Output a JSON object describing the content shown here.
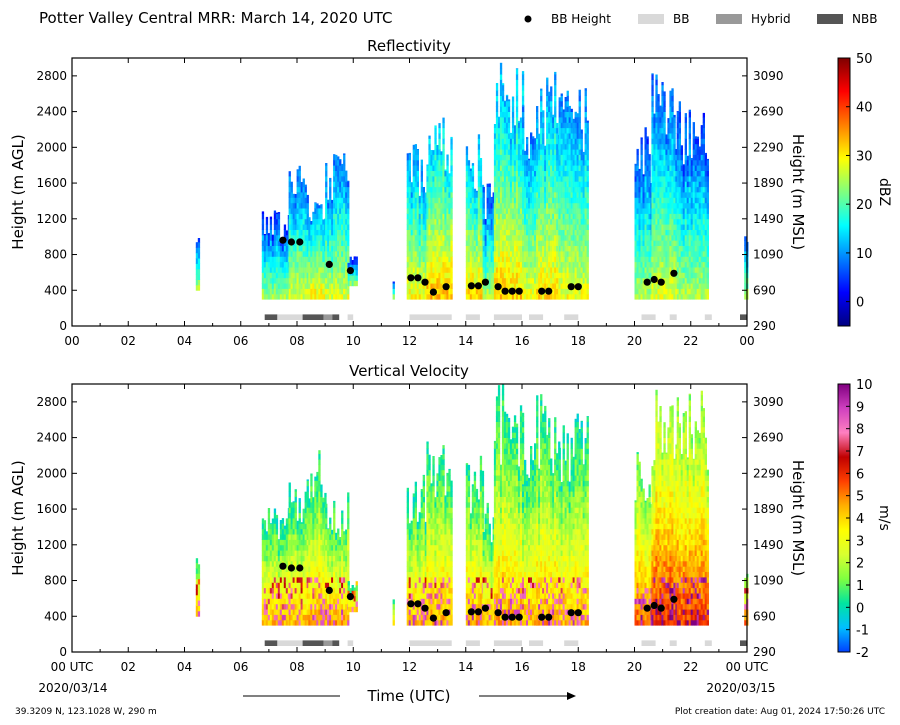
{
  "figure": {
    "title": "Potter Valley Central MRR:  March 14, 2020 UTC",
    "legend": [
      {
        "label": "BB Height",
        "kind": "dot",
        "color": "#000000"
      },
      {
        "label": "BB",
        "kind": "box",
        "color": "#d9d9d9"
      },
      {
        "label": "Hybrid",
        "kind": "box",
        "color": "#999999"
      },
      {
        "label": "NBB",
        "kind": "box",
        "color": "#555555"
      }
    ],
    "xlabel": "Time (UTC)",
    "start_date": "2020/03/14",
    "end_date": "2020/03/15",
    "footer_left": "39.3209 N, 123.1028 W, 290 m",
    "footer_right": "Plot creation date: Aug 01, 2024 17:50:26 UTC"
  },
  "chart_data": [
    {
      "type": "heatmap",
      "title": "Reflectivity",
      "ylabel": "Height (m AGL)",
      "y2label": "Height (m MSL)",
      "colorbar_label": "dBZ",
      "colorbar_ticks": [
        0,
        10,
        20,
        30,
        40,
        50
      ],
      "colorbar_range": [
        -5,
        50
      ],
      "colormap": [
        "#00007f",
        "#0000ff",
        "#007fff",
        "#00ffff",
        "#7fff7f",
        "#ffff00",
        "#ff7f00",
        "#ff0000",
        "#7f0000"
      ],
      "xlim": [
        0,
        24
      ],
      "ylim": [
        0,
        3000
      ],
      "x_tick_labels": [
        "00",
        "02",
        "04",
        "06",
        "08",
        "10",
        "12",
        "14",
        "16",
        "18",
        "20",
        "22",
        "00"
      ],
      "y_ticks": [
        0,
        400,
        800,
        1200,
        1600,
        2000,
        2400,
        2800
      ],
      "y2_ticks": [
        290,
        690,
        1090,
        1490,
        1890,
        2290,
        2690,
        3090
      ],
      "echo_columns": [
        {
          "x": [
            4.4,
            4.5
          ],
          "top": 1050,
          "base": 400,
          "level": 0.3
        },
        {
          "x": [
            6.75,
            7.7
          ],
          "top": 1300,
          "base": 300,
          "level": 0.28
        },
        {
          "x": [
            7.7,
            8.4
          ],
          "top": 1800,
          "base": 300,
          "level": 0.34
        },
        {
          "x": [
            8.4,
            9.0
          ],
          "top": 1400,
          "base": 300,
          "level": 0.38
        },
        {
          "x": [
            9.0,
            9.8
          ],
          "top": 1950,
          "base": 300,
          "level": 0.34
        },
        {
          "x": [
            9.8,
            10.1
          ],
          "top": 800,
          "base": 450,
          "level": 0.25
        },
        {
          "x": [
            11.4,
            11.45
          ],
          "top": 600,
          "base": 300,
          "level": 0.3
        },
        {
          "x": [
            11.9,
            12.6
          ],
          "top": 2050,
          "base": 300,
          "level": 0.38
        },
        {
          "x": [
            12.6,
            13.5
          ],
          "top": 2400,
          "base": 300,
          "level": 0.44
        },
        {
          "x": [
            14.0,
            14.6
          ],
          "top": 2150,
          "base": 300,
          "level": 0.42
        },
        {
          "x": [
            14.6,
            15.0
          ],
          "top": 1600,
          "base": 300,
          "level": 0.3
        },
        {
          "x": [
            15.0,
            16.0
          ],
          "top": 3000,
          "base": 300,
          "level": 0.42
        },
        {
          "x": [
            16.0,
            16.5
          ],
          "top": 2500,
          "base": 300,
          "level": 0.36
        },
        {
          "x": [
            16.5,
            17.3
          ],
          "top": 2900,
          "base": 300,
          "level": 0.4
        },
        {
          "x": [
            17.3,
            18.3
          ],
          "top": 2700,
          "base": 300,
          "level": 0.36
        },
        {
          "x": [
            20.0,
            20.6
          ],
          "top": 2300,
          "base": 300,
          "level": 0.3
        },
        {
          "x": [
            20.6,
            21.5
          ],
          "top": 2850,
          "base": 300,
          "level": 0.34
        },
        {
          "x": [
            21.5,
            22.6
          ],
          "top": 2600,
          "base": 300,
          "level": 0.3
        },
        {
          "x": [
            23.9,
            24.0
          ],
          "top": 1100,
          "base": 300,
          "level": 0.3
        }
      ]
    },
    {
      "type": "heatmap",
      "title": "Vertical Velocity",
      "ylabel": "Height (m AGL)",
      "y2label": "Height (m MSL)",
      "colorbar_label": "m/s",
      "colorbar_ticks": [
        -2,
        -1,
        0,
        1,
        2,
        3,
        4,
        5,
        6,
        7,
        8,
        9,
        10
      ],
      "colorbar_range": [
        -2,
        10
      ],
      "colormap": [
        "#0040ff",
        "#00bfff",
        "#00e5a0",
        "#7fff40",
        "#d8ff30",
        "#ffff00",
        "#ffb000",
        "#ff4000",
        "#c00000",
        "#ff80c0",
        "#d040c0",
        "#800080"
      ],
      "xlim": [
        0,
        24
      ],
      "ylim": [
        0,
        3000
      ],
      "x_tick_labels": [
        "00 UTC",
        "02",
        "04",
        "06",
        "08",
        "10",
        "12",
        "14",
        "16",
        "18",
        "20",
        "22",
        "00 UTC"
      ],
      "y_ticks": [
        0,
        400,
        800,
        1200,
        1600,
        2000,
        2400,
        2800
      ],
      "y2_ticks": [
        290,
        690,
        1090,
        1490,
        1890,
        2290,
        2690,
        3090
      ],
      "echo_columns": [
        {
          "x": [
            4.4,
            4.5
          ],
          "top": 1100,
          "base": 400,
          "level": 0.28
        },
        {
          "x": [
            6.75,
            7.7
          ],
          "top": 1700,
          "base": 300,
          "level": 0.28
        },
        {
          "x": [
            7.7,
            8.4
          ],
          "top": 2000,
          "base": 300,
          "level": 0.28
        },
        {
          "x": [
            8.4,
            9.0
          ],
          "top": 2300,
          "base": 300,
          "level": 0.3
        },
        {
          "x": [
            9.0,
            9.8
          ],
          "top": 1800,
          "base": 300,
          "level": 0.3
        },
        {
          "x": [
            9.8,
            10.1
          ],
          "top": 800,
          "base": 450,
          "level": 0.26
        },
        {
          "x": [
            11.4,
            11.45
          ],
          "top": 600,
          "base": 300,
          "level": 0.28
        },
        {
          "x": [
            11.9,
            12.6
          ],
          "top": 2050,
          "base": 300,
          "level": 0.28
        },
        {
          "x": [
            12.6,
            13.5
          ],
          "top": 2400,
          "base": 300,
          "level": 0.3
        },
        {
          "x": [
            14.0,
            14.6
          ],
          "top": 2200,
          "base": 300,
          "level": 0.3
        },
        {
          "x": [
            14.6,
            15.0
          ],
          "top": 1700,
          "base": 300,
          "level": 0.28
        },
        {
          "x": [
            15.0,
            16.0
          ],
          "top": 3000,
          "base": 300,
          "level": 0.3
        },
        {
          "x": [
            16.0,
            16.5
          ],
          "top": 2500,
          "base": 300,
          "level": 0.28
        },
        {
          "x": [
            16.5,
            17.3
          ],
          "top": 2900,
          "base": 300,
          "level": 0.3
        },
        {
          "x": [
            17.3,
            18.3
          ],
          "top": 2700,
          "base": 300,
          "level": 0.28
        },
        {
          "x": [
            20.0,
            20.6
          ],
          "top": 2300,
          "base": 300,
          "level": 0.36
        },
        {
          "x": [
            20.6,
            21.5
          ],
          "top": 3000,
          "base": 300,
          "level": 0.42
        },
        {
          "x": [
            21.5,
            22.6
          ],
          "top": 2950,
          "base": 300,
          "level": 0.4
        },
        {
          "x": [
            23.9,
            24.0
          ],
          "top": 1100,
          "base": 300,
          "level": 0.36
        }
      ]
    }
  ],
  "bb_height": {
    "times": [
      7.5,
      7.8,
      8.1,
      9.15,
      9.9,
      12.05,
      12.3,
      12.55,
      12.85,
      13.3,
      14.2,
      14.45,
      14.7,
      15.15,
      15.4,
      15.65,
      15.9,
      16.7,
      16.95,
      17.75,
      18.0,
      20.45,
      20.7,
      20.95,
      21.4
    ],
    "heights": [
      960,
      940,
      940,
      690,
      620,
      540,
      540,
      490,
      380,
      440,
      450,
      450,
      490,
      440,
      390,
      390,
      390,
      390,
      390,
      440,
      440,
      490,
      520,
      490,
      590
    ]
  },
  "bb_type_bar": [
    {
      "start": 6.85,
      "end": 7.3,
      "type": "NBB"
    },
    {
      "start": 7.3,
      "end": 8.2,
      "type": "BB"
    },
    {
      "start": 8.2,
      "end": 8.95,
      "type": "NBB"
    },
    {
      "start": 8.95,
      "end": 9.25,
      "type": "Hybrid"
    },
    {
      "start": 9.25,
      "end": 9.5,
      "type": "NBB"
    },
    {
      "start": 9.8,
      "end": 10.0,
      "type": "BB"
    },
    {
      "start": 12.0,
      "end": 13.5,
      "type": "BB"
    },
    {
      "start": 14.0,
      "end": 14.5,
      "type": "BB"
    },
    {
      "start": 15.0,
      "end": 16.0,
      "type": "BB"
    },
    {
      "start": 16.25,
      "end": 16.75,
      "type": "BB"
    },
    {
      "start": 17.5,
      "end": 18.0,
      "type": "BB"
    },
    {
      "start": 20.25,
      "end": 20.75,
      "type": "BB"
    },
    {
      "start": 21.25,
      "end": 21.5,
      "type": "BB"
    },
    {
      "start": 22.5,
      "end": 22.75,
      "type": "BB"
    },
    {
      "start": 23.75,
      "end": 24.0,
      "type": "NBB"
    }
  ]
}
